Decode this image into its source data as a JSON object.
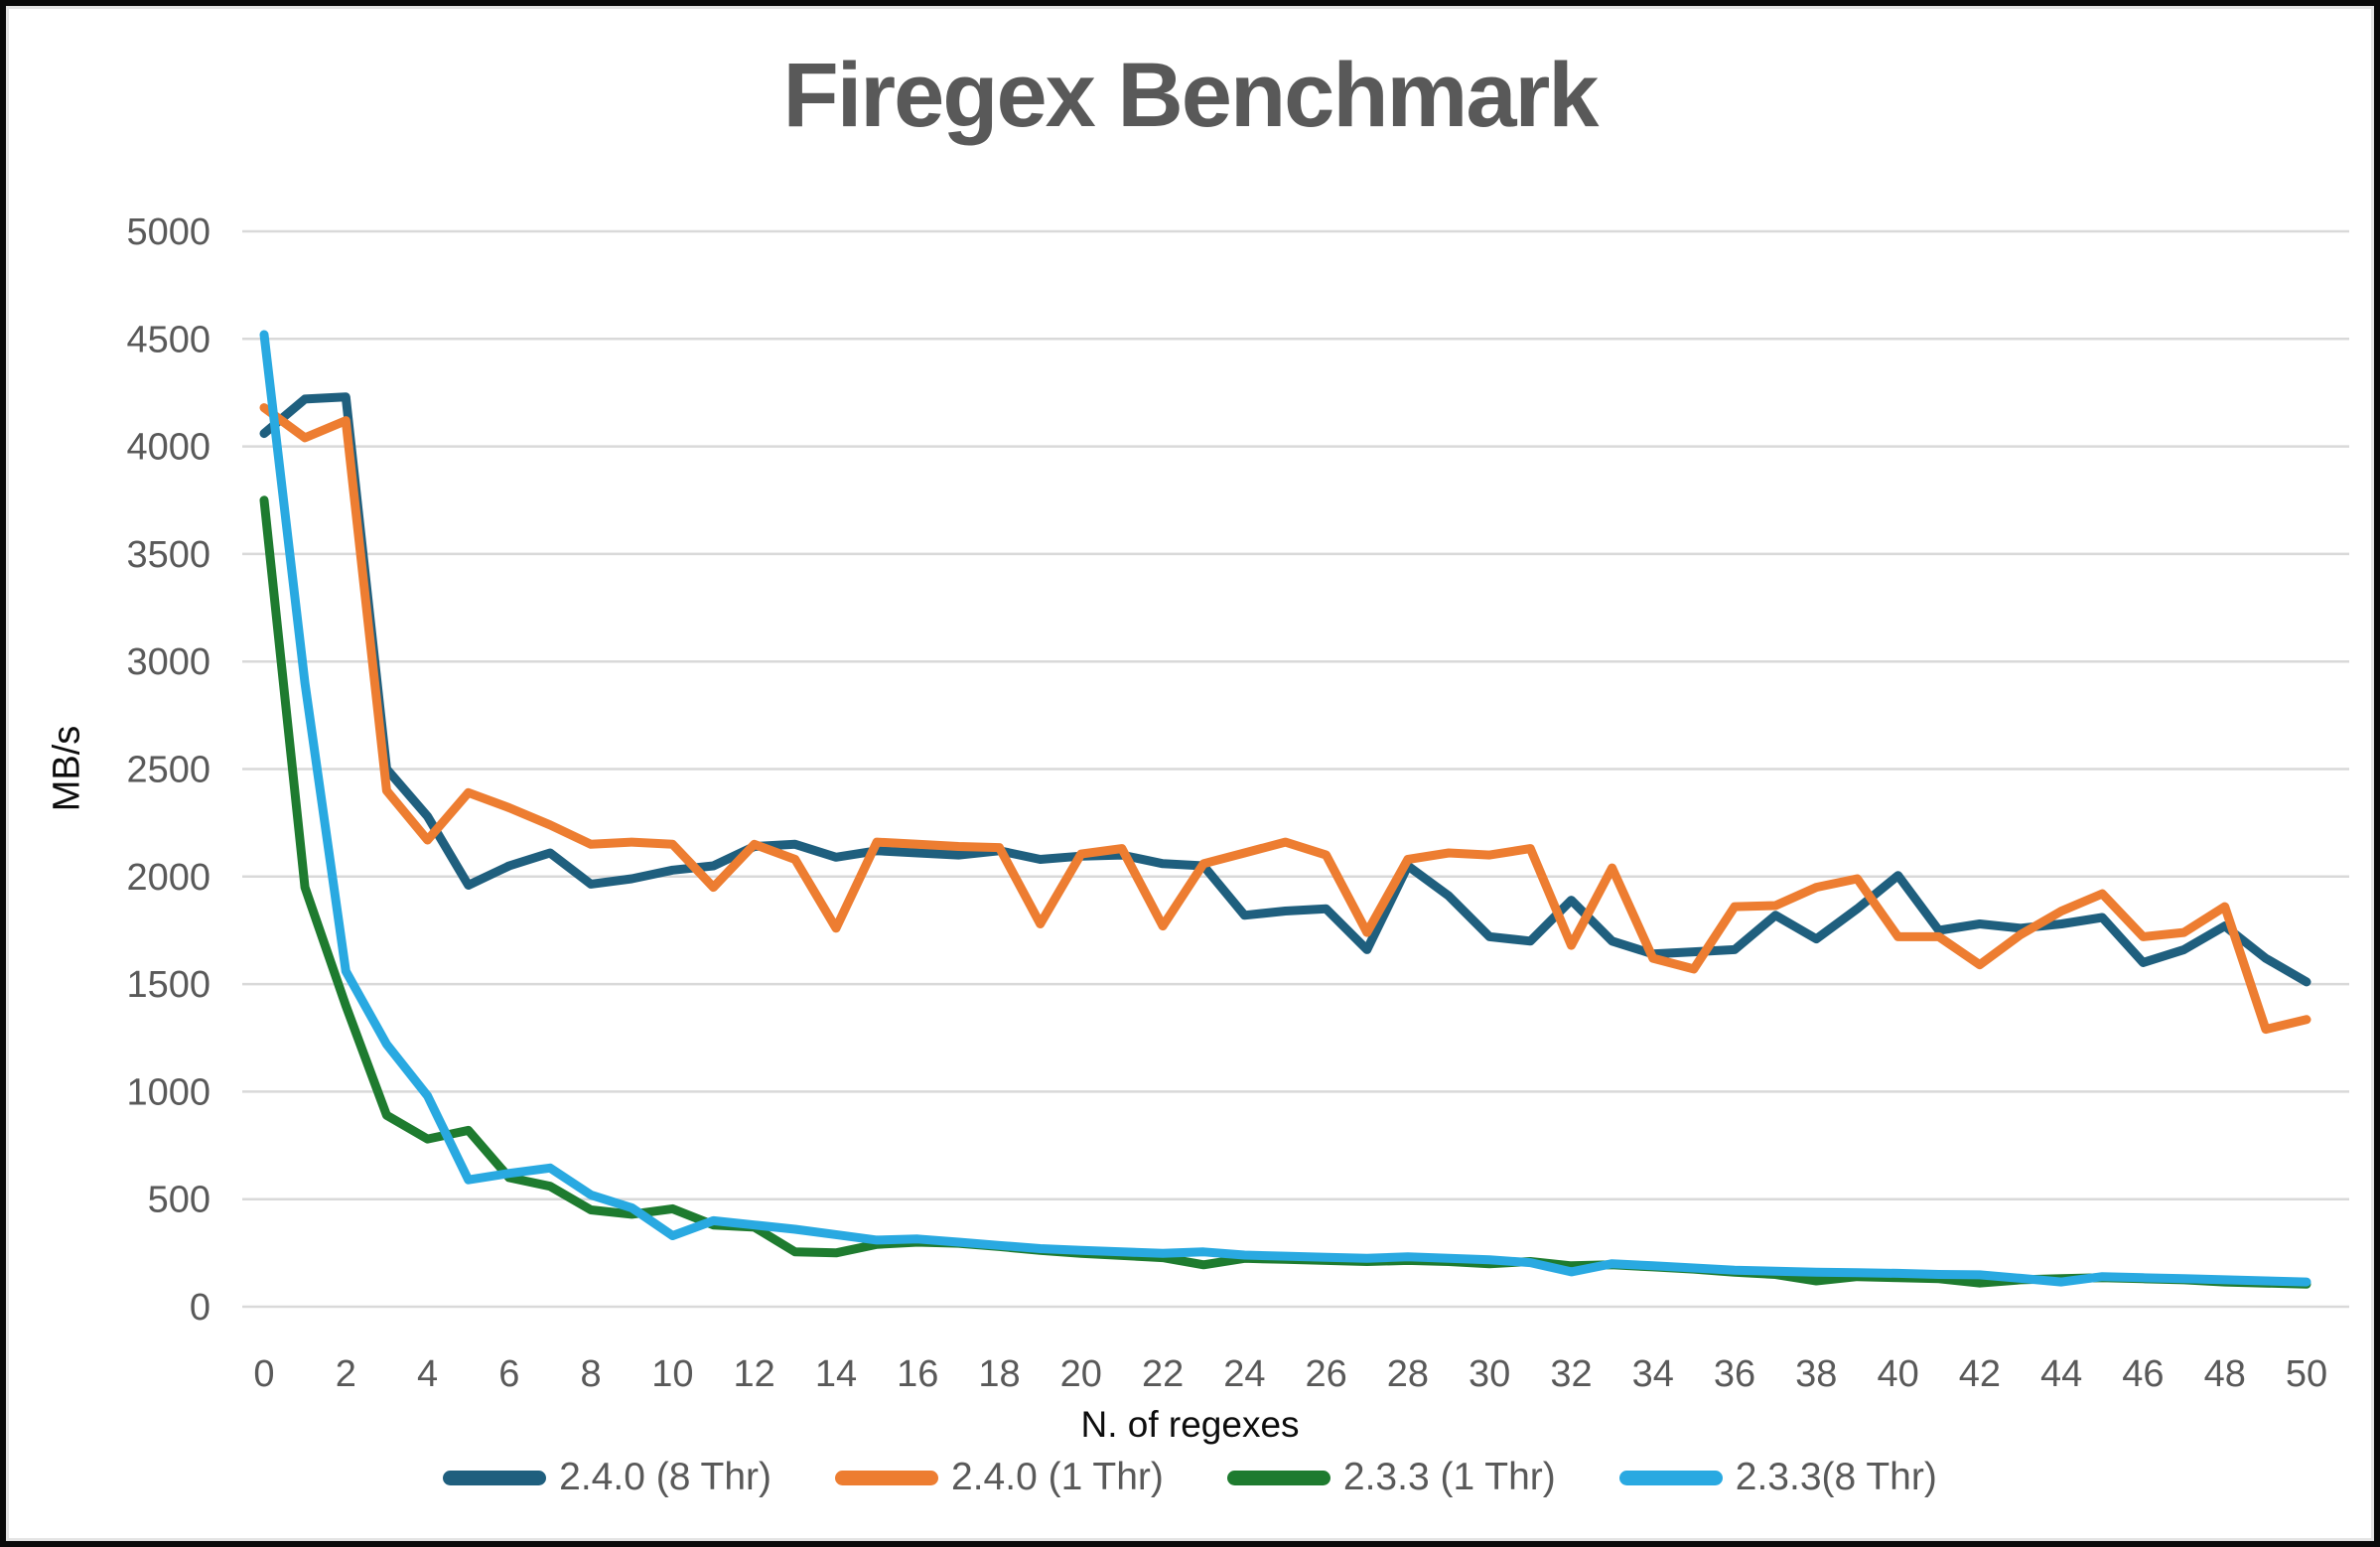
{
  "chart_data": {
    "type": "line",
    "title": "Firegex Benchmark",
    "xlabel": "N. of regexes",
    "ylabel": "MB/s",
    "x": [
      0,
      1,
      2,
      3,
      4,
      5,
      6,
      7,
      8,
      9,
      10,
      11,
      12,
      13,
      14,
      15,
      16,
      17,
      18,
      19,
      20,
      21,
      22,
      23,
      24,
      25,
      26,
      27,
      28,
      29,
      30,
      31,
      32,
      33,
      34,
      35,
      36,
      37,
      38,
      39,
      40,
      41,
      42,
      43,
      44,
      45,
      46,
      47,
      48,
      49,
      50
    ],
    "x_tick_step": 2,
    "ylim": [
      0,
      5000
    ],
    "y_tick_step": 500,
    "grid": "horizontal",
    "legend_position": "bottom",
    "gridline_color": "#D9D9D9",
    "tick_label_color": "#595959",
    "series": [
      {
        "name": "2.4.0 (8 Thr)",
        "color": "#1F5F7E",
        "values": [
          4060,
          4220,
          4230,
          2500,
          2280,
          1960,
          2050,
          2110,
          1965,
          1990,
          2030,
          2050,
          2140,
          2150,
          2090,
          2120,
          2110,
          2100,
          2120,
          2080,
          2095,
          2100,
          2060,
          2050,
          1820,
          1840,
          1850,
          1660,
          2050,
          1910,
          1720,
          1700,
          1890,
          1700,
          1640,
          1650,
          1660,
          1820,
          1710,
          1850,
          2005,
          1750,
          1780,
          1760,
          1780,
          1810,
          1600,
          1660,
          1770,
          1620,
          1510
        ]
      },
      {
        "name": "2.4.0 (1 Thr)",
        "color": "#ED7D31",
        "values": [
          4180,
          4040,
          4120,
          2400,
          2170,
          2390,
          2320,
          2240,
          2150,
          2160,
          2150,
          1950,
          2150,
          2080,
          1760,
          2160,
          2150,
          2140,
          2135,
          1780,
          2105,
          2130,
          1770,
          2060,
          2110,
          2160,
          2100,
          1740,
          2080,
          2110,
          2100,
          2130,
          1680,
          2040,
          1620,
          1570,
          1860,
          1865,
          1950,
          1990,
          1720,
          1720,
          1590,
          1730,
          1840,
          1920,
          1720,
          1740,
          1860,
          1290,
          1335
        ]
      },
      {
        "name": "2.3.3 (1 Thr)",
        "color": "#1E7B2F",
        "values": [
          3750,
          1950,
          1400,
          890,
          780,
          820,
          600,
          560,
          450,
          430,
          455,
          380,
          370,
          255,
          250,
          290,
          300,
          295,
          280,
          262,
          248,
          238,
          228,
          195,
          225,
          220,
          215,
          210,
          215,
          210,
          200,
          210,
          190,
          195,
          185,
          175,
          160,
          150,
          120,
          140,
          135,
          130,
          110,
          125,
          130,
          135,
          130,
          125,
          115,
          110,
          105
        ]
      },
      {
        "name": "2.3.3(8 Thr)",
        "color": "#29A9E1",
        "values": [
          4520,
          2900,
          1560,
          1220,
          980,
          590,
          620,
          645,
          520,
          460,
          330,
          400,
          380,
          360,
          335,
          310,
          315,
          300,
          285,
          270,
          262,
          255,
          248,
          255,
          240,
          235,
          230,
          225,
          232,
          225,
          218,
          205,
          162,
          200,
          190,
          180,
          170,
          165,
          160,
          158,
          155,
          150,
          148,
          132,
          115,
          140,
          135,
          130,
          125,
          120,
          115
        ]
      }
    ]
  }
}
